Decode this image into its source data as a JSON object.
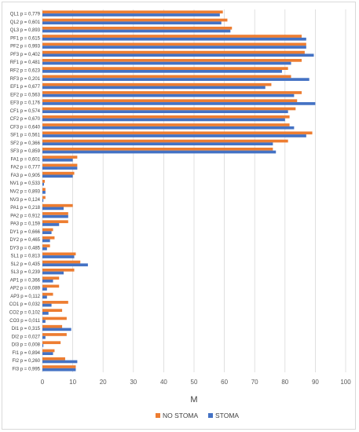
{
  "chart_data": {
    "type": "bar",
    "orientation": "horizontal",
    "xlabel": "M",
    "xlim": [
      0,
      100
    ],
    "xticks": [
      0,
      10,
      20,
      30,
      40,
      50,
      60,
      70,
      80,
      90,
      100
    ],
    "grid": true,
    "legend_position": "bottom",
    "categories": [
      "QL1 p = 0,779",
      "QL2 p = 0,601",
      "QL3 p = 0,893",
      "PF1 p = 0,615",
      "PF2 p = 0,993",
      "PF3 p = 0,402",
      "RF1 p = 0,481",
      "RF2 p = 0,623",
      "RF3 p = 0,201",
      "EF1 p = 0,677",
      "EF2 p = 0,563",
      "EF3 p = 0,176",
      "CF1 p = 0,574",
      "CF2 p = 0,670",
      "CF3 p = 0,640",
      "SF1 p = 0,561",
      "SF2 p = 0,366",
      "SF3 p = 0,859",
      "FA1 p = 0,601",
      "FA2 p = 0,777",
      "FA3 p = 0,905",
      "NV1 p = 0,533",
      "NV2 p = 0,893",
      "NV3 p = 0,124",
      "PA1 p = 0,218",
      "PA2 p = 0,912",
      "PA3 p = 0,159",
      "DY1 p = 0,666",
      "DY2 p = 0,465",
      "DY3 p = 0,485",
      "SL1 p = 0,813",
      "SL2 p = 0,435",
      "SL3 p = 0,239",
      "AP1 p = 0,366",
      "AP2 p = 0,089",
      "AP3 p = 0,112",
      "CO1 p = 0,032",
      "CO2 p = 0,102",
      "CO3 p = 0,011",
      "DI1 p = 0,315",
      "DI2 p = 0,027",
      "DI3 p = 0,008",
      "FI1 p = 0,894",
      "FI2 p = 0,260",
      "FI3 p = 0,995"
    ],
    "series": [
      {
        "name": "NO STOMA",
        "color": "#ed7d31",
        "values": [
          59.5,
          61,
          62.5,
          85.5,
          87,
          86.5,
          85.5,
          81,
          82,
          75.5,
          85.5,
          84,
          83.5,
          81.5,
          81.5,
          89,
          81,
          76,
          11.5,
          11.5,
          10.5,
          0.8,
          1,
          1,
          10,
          8.5,
          8.5,
          3.5,
          4,
          2.5,
          11,
          12.5,
          10.5,
          5.5,
          5.5,
          3.5,
          8.5,
          6.5,
          8,
          6.5,
          8,
          6,
          4,
          7.5,
          11
        ],
        "display_label": "series_name"
      },
      {
        "name": "STOMA",
        "color": "#4472c4",
        "values": [
          58.5,
          59,
          62,
          87,
          87,
          89.5,
          82,
          79,
          88,
          73.5,
          83,
          90,
          81,
          80,
          83,
          87,
          76,
          77,
          10,
          11.5,
          10,
          0.5,
          1,
          0.3,
          7,
          8.5,
          5.5,
          3,
          2.5,
          1.5,
          10.5,
          15,
          7,
          3.5,
          1.5,
          1.5,
          3,
          2,
          1,
          9.5,
          1,
          0.3,
          3.5,
          11.5,
          11
        ]
      }
    ]
  },
  "legend": {
    "no_stoma_label": "NO STOMA",
    "stoma_label": "STOMA"
  }
}
